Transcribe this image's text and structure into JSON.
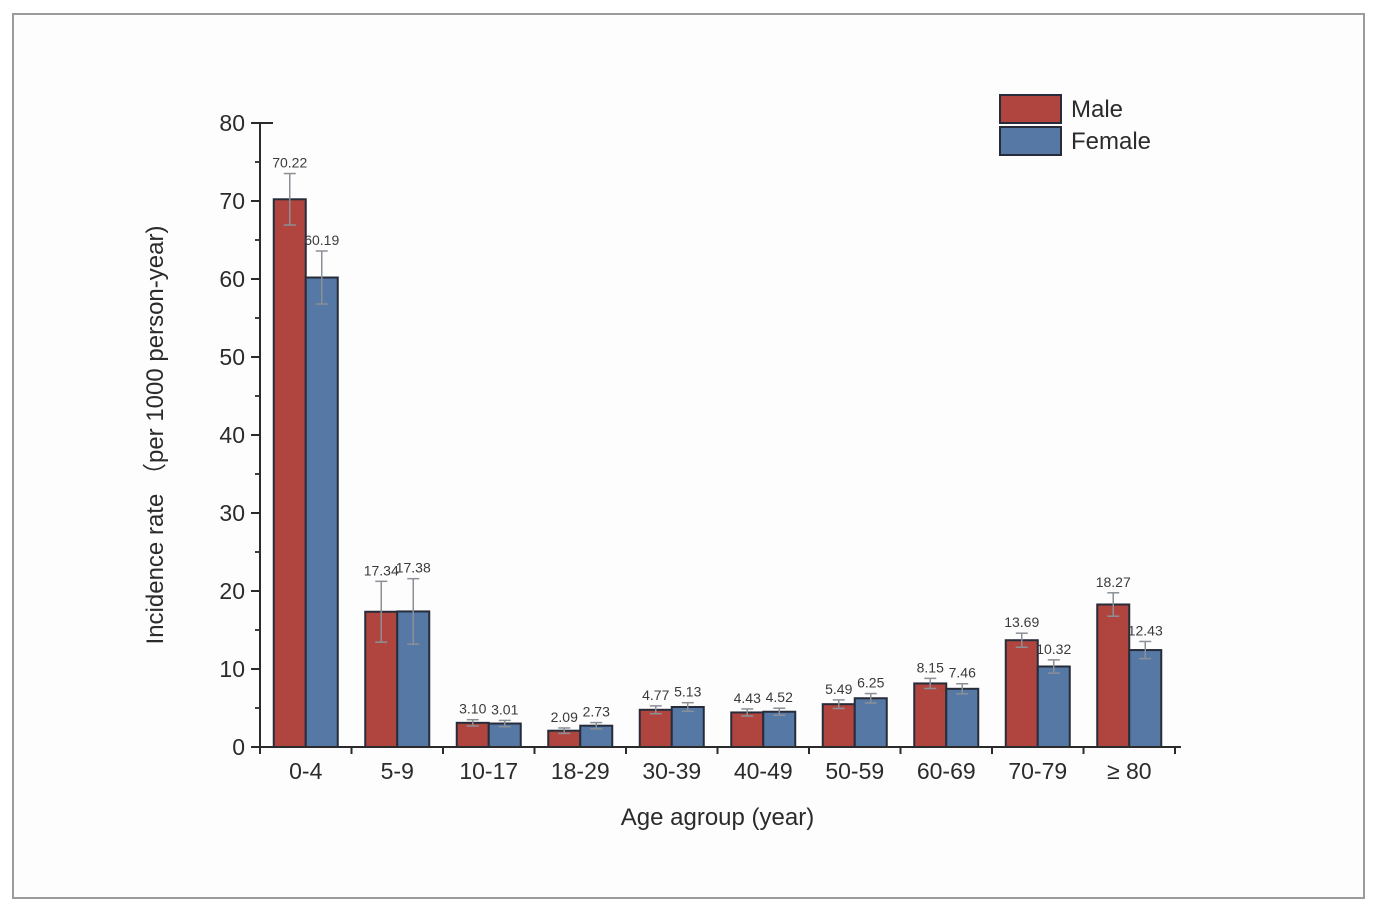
{
  "figure": {
    "frame_color": "#9b9b9b",
    "background": "#fdfdfd"
  },
  "chart_data": {
    "type": "bar",
    "title": "",
    "xlabel": "Age agroup (year)",
    "ylabel": "Incidence rate （per 1000 person-year)",
    "categories": [
      "0-4",
      "5-9",
      "10-17",
      "18-29",
      "30-39",
      "40-49",
      "50-59",
      "60-69",
      "70-79",
      "≥ 80"
    ],
    "series": [
      {
        "name": "Male",
        "color": "#b0453f",
        "values": [
          70.22,
          17.34,
          3.1,
          2.09,
          4.77,
          4.43,
          5.49,
          8.15,
          13.69,
          18.27
        ],
        "errors": [
          3.3,
          3.9,
          0.4,
          0.35,
          0.5,
          0.45,
          0.55,
          0.65,
          0.9,
          1.5
        ]
      },
      {
        "name": "Female",
        "color": "#5578a5",
        "values": [
          60.19,
          17.38,
          3.01,
          2.73,
          5.13,
          4.52,
          6.25,
          7.46,
          10.32,
          12.43
        ],
        "errors": [
          3.4,
          4.2,
          0.4,
          0.4,
          0.55,
          0.45,
          0.6,
          0.65,
          0.85,
          1.1
        ]
      }
    ],
    "value_label_format": "2-decimals",
    "ylim": [
      0,
      80
    ],
    "yticks_major": [
      0,
      10,
      20,
      30,
      40,
      50,
      60,
      70,
      80
    ],
    "yticks_minor": [
      5,
      15,
      25,
      35,
      45,
      55,
      65,
      75
    ],
    "grid": false,
    "legend_position": "top-right",
    "colors": {
      "axis": "#2b2b2b",
      "bar_border": "#262c3a",
      "error_bar": "#8b9096",
      "value_label": "#3a3a3a",
      "tick_label": "#2b2b2b"
    }
  }
}
